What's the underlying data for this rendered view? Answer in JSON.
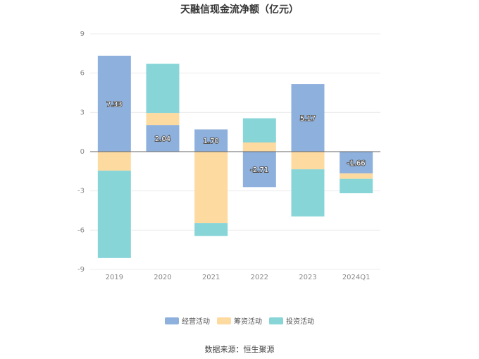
{
  "chart_data": {
    "type": "bar",
    "stacked": true,
    "title": "天融信现金流净额（亿元）",
    "categories": [
      "2019",
      "2020",
      "2021",
      "2022",
      "2023",
      "2024Q1"
    ],
    "series": [
      {
        "name": "经营活动",
        "color": "#8eb0dd",
        "values": [
          7.33,
          2.04,
          1.7,
          -2.71,
          5.17,
          -1.66
        ]
      },
      {
        "name": "筹资活动",
        "color": "#fddba0",
        "values": [
          -1.45,
          0.92,
          -5.45,
          0.7,
          -1.35,
          -0.42
        ]
      },
      {
        "name": "投资活动",
        "color": "#88d5d8",
        "values": [
          -6.68,
          3.75,
          -1.0,
          1.85,
          -3.6,
          -1.1
        ]
      }
    ],
    "data_labels": [
      "7.33",
      "2.04",
      "1.70",
      "-2.71",
      "5.17",
      "-1.66"
    ],
    "ylim": [
      -9,
      9
    ],
    "yticks": [
      9,
      6,
      3,
      0,
      -3,
      -6,
      -9
    ],
    "grid": true,
    "legend_position": "bottom",
    "source": "数据来源：恒生聚源"
  }
}
